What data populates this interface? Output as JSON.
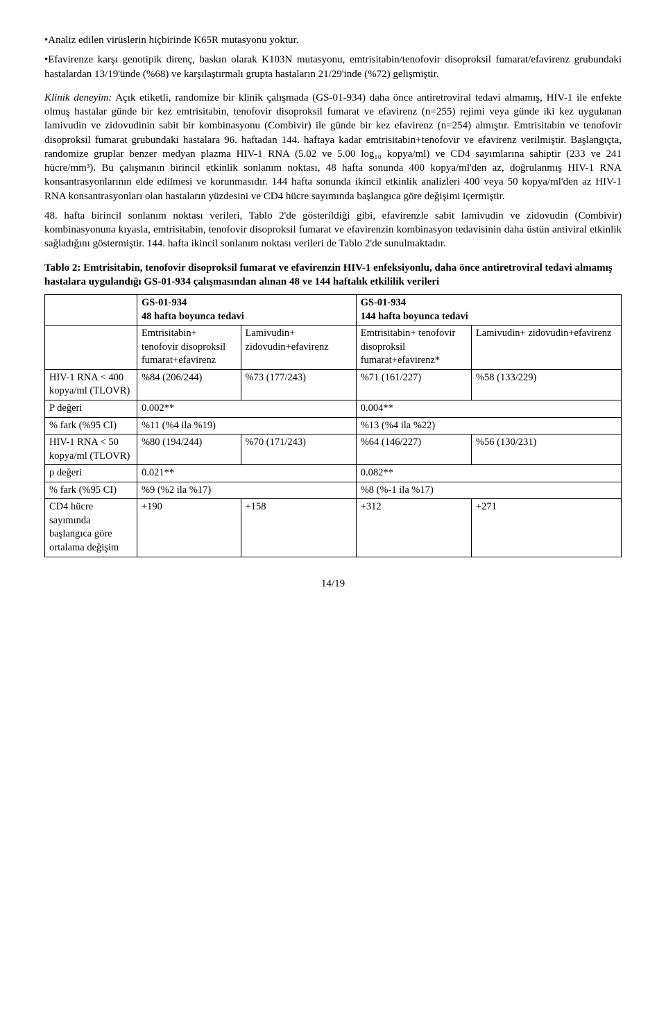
{
  "text": {
    "intro1": "•Analiz edilen virüslerin hiçbirinde K65R mutasyonu yoktur.",
    "intro2": "•Efavirenze karşı genotipik direnç, baskın olarak K103N mutasyonu, emtrisitabin/tenofovir disoproksil fumarat/efavirenz grubundaki hastalardan 13/19'ünde (%68) ve karşılaştırmalı grupta hastaların 21/29'inde (%72) gelişmiştir.",
    "klinik_label": "Klinik deneyim:",
    "klinik_body": " Açık etiketli, randomize bir klinik çalışmada (GS-01-934) daha önce antiretroviral tedavi almamış, HIV-1 ile enfekte olmuş hastalar günde bir kez emtrisitabin, tenofovir disoproksil fumarat ve efavirenz (n=255) rejimi veya günde iki kez uygulanan lamivudin ve zidovudinin sabit bir kombinasyonu (Combivir) ile günde bir kez efavirenz (n=254) almıştır. Emtrisitabin ve tenofovir disoproksil fumarat grubundaki hastalara 96. haftadan 144. haftaya kadar emtrisitabin+tenofovir ve efavirenz verilmiştir. Başlangıçta, randomize gruplar benzer medyan plazma HIV-1 RNA (5.02 ve 5.00 log₁₀ kopya/ml) ve CD4 sayımlarına sahiptir (233 ve 241 hücre/mm³). Bu çalışmanın birincil etkinlik sonlanım noktası, 48 hafta sonunda 400 kopya/ml'den az, doğrulanmış HIV-1 RNA konsantrasyonlarının elde edilmesi ve korunmasıdır. 144 hafta sonunda ikincil etkinlik analizleri 400 veya 50 kopya/ml'den az HIV-1 RNA konsantrasyonları olan hastaların yüzdesini ve CD4 hücre sayımında başlangıca göre değişimi içermiştir.",
    "para3": "48. hafta birincil sonlanım noktası verileri, Tablo 2'de gösterildiği gibi, efavirenzle sabit lamivudin ve zidovudin (Combivir) kombinasyonuna kıyasla, emtrisitabin, tenofovir disoproksil fumarat ve efavirenzin kombinasyon tedavisinin daha üstün antiviral etkinlik sağladığını göstermiştir. 144. hafta ikincil sonlanım noktası verileri de Tablo 2'de sunulmaktadır.",
    "table_title": "Tablo 2: Emtrisitabin, tenofovir disoproksil fumarat ve efavirenzin HIV-1 enfeksiyonlu, daha önce antiretroviral tedavi almamış hastalara uygulandığı GS-01-934 çalışmasından alınan 48 ve 144 haftalık etkililik verileri"
  },
  "table": {
    "group_headers": {
      "g1_line1": "GS-01-934",
      "g1_line2": "48 hafta boyunca tedavi",
      "g2_line1": "GS-01-934",
      "g2_line2": "144 hafta boyunca tedavi"
    },
    "col_headers": {
      "c1": "Emtrisitabin+ tenofovir disoproksil fumarat+efavirenz",
      "c2": "Lamivudin+ zidovudin+efavirenz",
      "c3": "Emtrisitabin+ tenofovir disoproksil fumarat+efavirenz*",
      "c4": "Lamivudin+ zidovudin+efavirenz"
    },
    "rows": [
      {
        "label": "HIV-1 RNA < 400 kopya/ml (TLOVR)",
        "c1": "%84 (206/244)",
        "c2": "%73 (177/243)",
        "c3": "%71 (161/227)",
        "c4": "%58 (133/229)"
      },
      {
        "label": "P değeri",
        "c1": "0.002**",
        "c2": "",
        "c3": "0.004**",
        "c4": ""
      },
      {
        "label": "% fark (%95 CI)",
        "c1": "%11 (%4 ila %19)",
        "c2": "",
        "c3": "%13 (%4 ila %22)",
        "c4": ""
      },
      {
        "label": "HIV-1 RNA < 50 kopya/ml (TLOVR)",
        "c1": "%80 (194/244)",
        "c2": "%70 (171/243)",
        "c3": "%64 (146/227)",
        "c4": "%56 (130/231)"
      },
      {
        "label": "p değeri",
        "c1": "0.021**",
        "c2": "",
        "c3": "0.082**",
        "c4": ""
      },
      {
        "label": "% fark (%95 CI)",
        "c1": "%9 (%2 ila %17)",
        "c2": "",
        "c3": "%8 (%-1 ila %17)",
        "c4": ""
      },
      {
        "label": "CD4 hücre sayımında başlangıca göre ortalama değişim",
        "c1": "+190",
        "c2": "+158",
        "c3": "+312",
        "c4": "+271"
      }
    ]
  },
  "page_number": "14/19",
  "style": {
    "font_family": "Times New Roman",
    "body_font_size_pt": 12,
    "text_color": "#000000",
    "background_color": "#ffffff",
    "table_border_color": "#000000",
    "col_widths_pct": [
      16,
      18,
      20,
      20,
      26
    ]
  }
}
